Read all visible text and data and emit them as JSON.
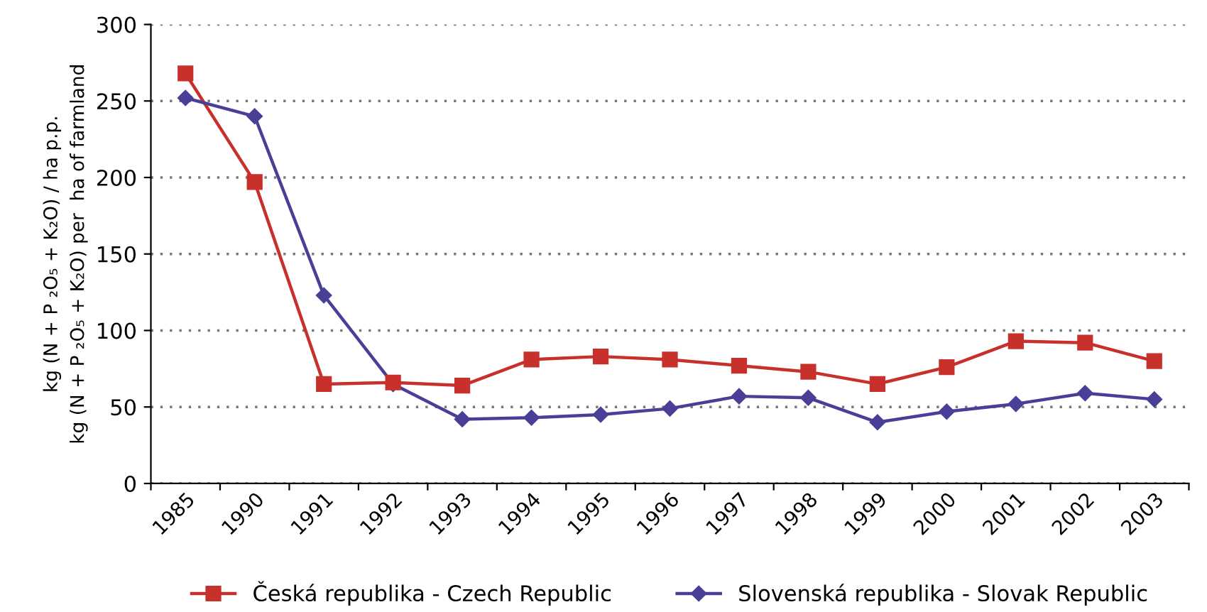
{
  "chart_data": {
    "type": "line",
    "ylabel": "kg (N + P ₂O₅ + K₂O) / ha p.p.\nkg (N + P ₂O₅ + K₂O) per  ha of farmland",
    "categories": [
      "1985",
      "1990",
      "1991",
      "1992",
      "1993",
      "1994",
      "1995",
      "1996",
      "1997",
      "1998",
      "1999",
      "2000",
      "2001",
      "2002",
      "2003"
    ],
    "series": [
      {
        "name": "Česká republika - Czech Republic",
        "color": "#c8302c",
        "marker": "square",
        "values": [
          268,
          197,
          65,
          66,
          64,
          81,
          83,
          81,
          77,
          73,
          65,
          76,
          93,
          92,
          80
        ]
      },
      {
        "name": "Slovenská republika - Slovak Republic",
        "color": "#4a3f96",
        "marker": "diamond",
        "values": [
          252,
          240,
          123,
          65,
          42,
          43,
          45,
          49,
          57,
          56,
          40,
          47,
          52,
          59,
          55
        ]
      }
    ],
    "ylim": [
      0,
      300
    ],
    "yticks": [
      0,
      50,
      100,
      150,
      200,
      250,
      300
    ],
    "grid": "y",
    "legend": "bottom",
    "line_style": "solid"
  }
}
